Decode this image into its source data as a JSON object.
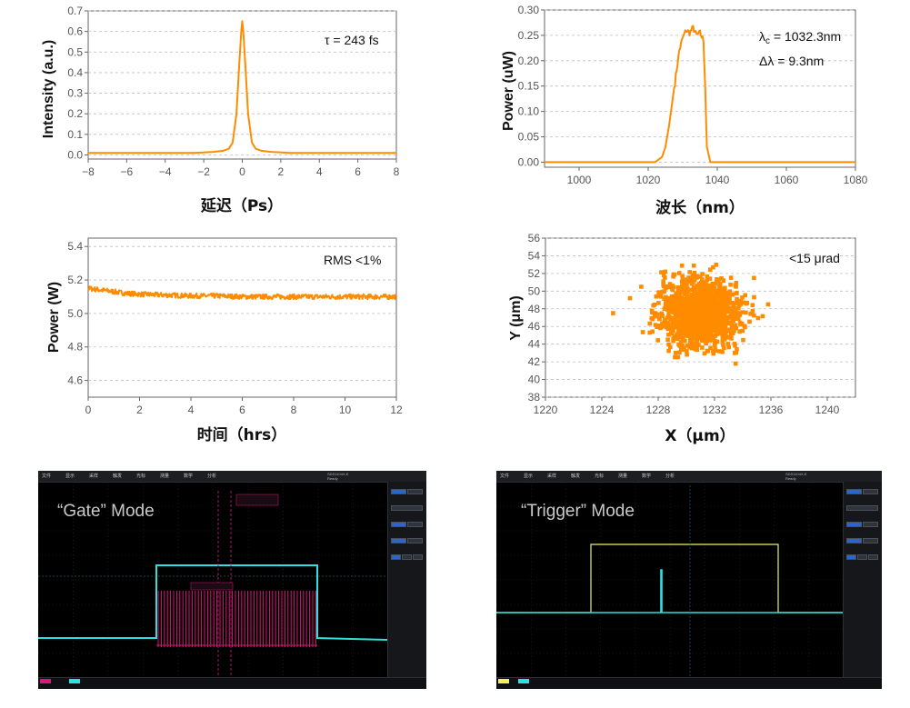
{
  "chart_data": [
    {
      "id": "autocorrelation",
      "type": "line",
      "xlabel": "延迟（Ps）",
      "ylabel": "Intensity (a.u.)",
      "xlim": [
        -8,
        8
      ],
      "ylim": [
        -0.02,
        0.7
      ],
      "xticks": [
        -8,
        -6,
        -4,
        -2,
        0,
        2,
        4,
        6,
        8
      ],
      "yticks": [
        0.0,
        0.1,
        0.2,
        0.3,
        0.4,
        0.5,
        0.6,
        0.7
      ],
      "ytick_labels": [
        "0.0",
        "0.1",
        "0.2",
        "0.3",
        "0.4",
        "0.5",
        "0.6",
        "0.7"
      ],
      "annotation": "τ = 243 fs",
      "grid": true,
      "series": [
        {
          "name": "autocorrelation trace",
          "x": [
            -8,
            -5,
            -2.5,
            -1.5,
            -1,
            -0.7,
            -0.5,
            -0.3,
            -0.15,
            -0.05,
            0,
            0.05,
            0.15,
            0.3,
            0.5,
            0.7,
            1,
            1.5,
            2.5,
            5,
            8
          ],
          "y": [
            0.01,
            0.01,
            0.01,
            0.015,
            0.02,
            0.03,
            0.06,
            0.2,
            0.45,
            0.6,
            0.65,
            0.6,
            0.45,
            0.2,
            0.06,
            0.03,
            0.02,
            0.015,
            0.01,
            0.01,
            0.01
          ]
        }
      ]
    },
    {
      "id": "spectrum",
      "type": "line",
      "xlabel": "波长（nm）",
      "ylabel": "Power (uW)",
      "xlim": [
        990,
        1080
      ],
      "ylim": [
        -0.01,
        0.3
      ],
      "xticks": [
        1000,
        1020,
        1040,
        1060,
        1080
      ],
      "yticks": [
        0.0,
        0.05,
        0.1,
        0.15,
        0.2,
        0.25,
        0.3
      ],
      "ytick_labels": [
        "0.00",
        "0.05",
        "0.10",
        "0.15",
        "0.20",
        "0.25",
        "0.30"
      ],
      "annotation_lines": [
        {
          "symbol": "λ",
          "sub": "c",
          "text": " = 1032.3nm"
        },
        {
          "symbol": "Δλ",
          "sub": "",
          "text": " = 9.3nm"
        }
      ],
      "grid": true,
      "series": [
        {
          "name": "spectrum",
          "x": [
            990,
            1022,
            1024,
            1025,
            1026,
            1027,
            1028,
            1029,
            1030,
            1031,
            1032,
            1033,
            1034,
            1035,
            1036,
            1036.5,
            1037,
            1038,
            1040,
            1080
          ],
          "y": [
            0.0,
            0.0,
            0.01,
            0.03,
            0.07,
            0.12,
            0.17,
            0.22,
            0.245,
            0.26,
            0.255,
            0.265,
            0.25,
            0.255,
            0.24,
            0.15,
            0.03,
            0.0,
            0.0,
            0.0
          ]
        }
      ]
    },
    {
      "id": "power-stability",
      "type": "line",
      "xlabel": "时间（hrs）",
      "ylabel": "Power (W)",
      "xlim": [
        0,
        12
      ],
      "ylim": [
        4.5,
        5.45
      ],
      "xticks": [
        0,
        2,
        4,
        6,
        8,
        10,
        12
      ],
      "yticks": [
        4.6,
        4.8,
        5.0,
        5.2,
        5.4
      ],
      "ytick_labels": [
        "4.6",
        "4.8",
        "5.0",
        "5.2",
        "5.4"
      ],
      "annotation": "RMS <1%",
      "grid": true,
      "series": [
        {
          "name": "output power",
          "x": [
            0,
            0.5,
            1,
            1.5,
            2,
            3,
            4,
            5,
            6,
            7,
            8,
            9,
            10,
            11,
            12
          ],
          "y": [
            5.15,
            5.14,
            5.13,
            5.12,
            5.115,
            5.11,
            5.105,
            5.105,
            5.1,
            5.1,
            5.1,
            5.1,
            5.1,
            5.1,
            5.1
          ]
        }
      ]
    },
    {
      "id": "beam-pointing",
      "type": "scatter",
      "xlabel": "X（μm）",
      "ylabel": "Y (μm)",
      "xlim": [
        1220,
        1242
      ],
      "ylim": [
        38,
        56
      ],
      "xticks": [
        1220,
        1224,
        1228,
        1232,
        1236,
        1240
      ],
      "yticks": [
        38,
        40,
        42,
        44,
        46,
        48,
        50,
        52,
        54,
        56
      ],
      "annotation": "<15 μrad",
      "grid": true,
      "series": [
        {
          "name": "beam position",
          "center": [
            1231,
            47.5
          ],
          "spread_x": 1.4,
          "spread_y": 1.9,
          "outliers": [
            [
              1224.8,
              47.5
            ],
            [
              1226,
              49.2
            ],
            [
              1226.8,
              50.5
            ],
            [
              1233.5,
              41.8
            ],
            [
              1235.8,
              48.5
            ],
            [
              1234.8,
              51.5
            ],
            [
              1228.5,
              52.2
            ]
          ]
        }
      ]
    }
  ],
  "colors": {
    "trace": "#ff8c00",
    "scope_cyan": "#2ee0e0",
    "scope_magenta": "#d61a77",
    "scope_yellow": "#f0f060"
  },
  "scope_left": {
    "mode_label": "“Gate” Mode",
    "menu": [
      "文件",
      "显示",
      "采样",
      "触发",
      "光标",
      "测量",
      "数学",
      "分析"
    ],
    "header_right": [
      "SDS1104X-E",
      "Ready"
    ]
  },
  "scope_right": {
    "mode_label": "“Trigger” Mode",
    "menu": [
      "文件",
      "显示",
      "采样",
      "触发",
      "光标",
      "测量",
      "数学",
      "分析"
    ],
    "header_right": [
      "SDS1104X-E",
      "Ready"
    ]
  }
}
